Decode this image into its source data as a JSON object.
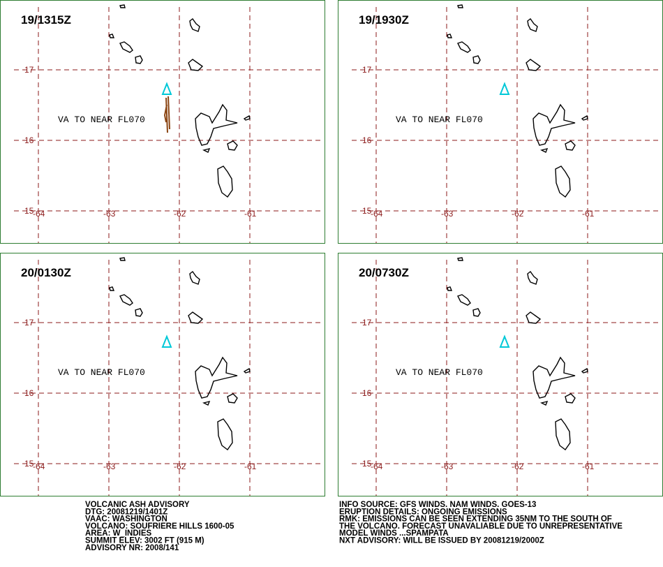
{
  "map": {
    "lats": [
      17,
      16,
      15
    ],
    "lons": [
      -64,
      -63,
      -62,
      -61
    ],
    "panels": [
      {
        "time": "19/1315Z",
        "note": "VA TO NEAR FL070"
      },
      {
        "time": "19/1930Z",
        "note": "VA TO NEAR FL070"
      },
      {
        "time": "20/0130Z",
        "note": "VA TO NEAR FL070"
      },
      {
        "time": "20/0730Z",
        "note": "VA TO NEAR FL070"
      }
    ]
  },
  "footer": {
    "left": [
      "VOLCANIC ASH ADVISORY",
      "DTG: 20081219/1401Z",
      "VAAC: WASHINGTON",
      "VOLCANO: SOUFRIERE HILLS 1600-05",
      "AREA: W_INDIES",
      "SUMMIT ELEV: 3002 FT (915 M)",
      "ADVISORY NR: 2008/141"
    ],
    "right": [
      "INFO SOURCE: GFS WINDS. NAM WINDS. GOES-13",
      "ERUPTION DETAILS: ONGOING EMISSIONS",
      "RMK: EMISSIONS CAN BE SEEN EXTENDING 35NM TO THE SOUTH OF",
      "THE VOLCANO. FORECAST UNAVALIABLE DUE TO UNREPRESENTATIVE",
      "MODEL WINDS ...SPAMPATA",
      "NXT ADVISORY: WILL BE ISSUED BY 20081219/2000Z"
    ]
  }
}
